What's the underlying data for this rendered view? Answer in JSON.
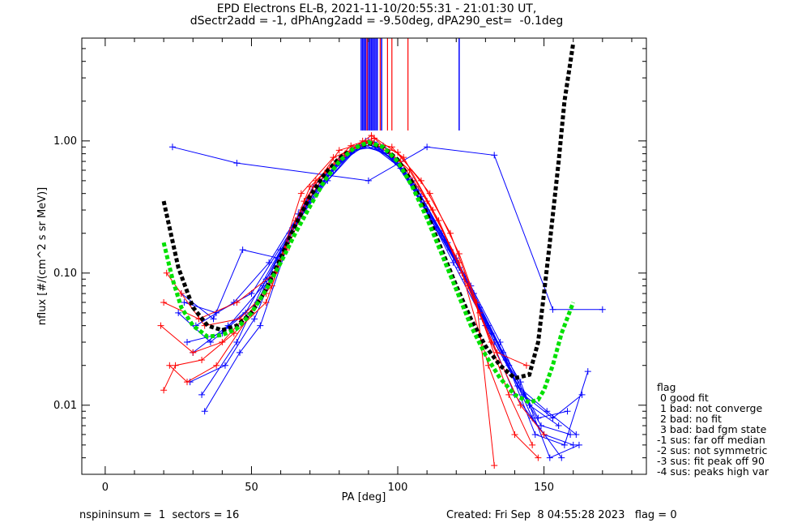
{
  "chart_data": {
    "type": "line",
    "title_line1": "EPD Electrons EL-B, 2021-11-10/20:55:31 - 21:01:30 UT,",
    "title_line2": "dSectr2add = -1, dPhAng2add = -9.50deg, dPA290_est=  -0.1deg",
    "xlabel": "PA [deg]",
    "ylabel": "nflux [#/(cm^2 s sr MeV)]",
    "xlim": [
      -8,
      185
    ],
    "ylim": [
      0.003,
      6.0
    ],
    "yscale": "log",
    "x_ticks": [
      "0",
      "50",
      "100",
      "150"
    ],
    "x_tick_values": [
      0,
      50,
      100,
      150
    ],
    "y_ticks": [
      "0.01",
      "0.10",
      "1.00"
    ],
    "y_tick_values": [
      0.01,
      0.1,
      1.0
    ],
    "fit_curves": [
      {
        "color": "#000000",
        "x": [
          20,
          25,
          30,
          35,
          40,
          45,
          50,
          55,
          60,
          65,
          70,
          75,
          80,
          85,
          90,
          95,
          100,
          105,
          110,
          115,
          120,
          125,
          130,
          135,
          140,
          145,
          148,
          150,
          152,
          155,
          157,
          160
        ],
        "y": [
          0.35,
          0.11,
          0.055,
          0.04,
          0.037,
          0.04,
          0.05,
          0.075,
          0.13,
          0.23,
          0.38,
          0.56,
          0.74,
          0.88,
          0.96,
          0.9,
          0.72,
          0.48,
          0.28,
          0.15,
          0.08,
          0.045,
          0.028,
          0.02,
          0.016,
          0.017,
          0.03,
          0.07,
          0.17,
          0.7,
          2.0,
          5.5
        ]
      },
      {
        "color": "#00e000",
        "x": [
          20,
          23,
          26,
          30,
          35,
          40,
          45,
          50,
          55,
          60,
          65,
          70,
          75,
          80,
          85,
          90,
          95,
          100,
          105,
          110,
          115,
          120,
          125,
          130,
          135,
          140,
          145,
          148,
          150,
          153,
          156,
          160
        ],
        "y": [
          0.17,
          0.09,
          0.055,
          0.04,
          0.033,
          0.034,
          0.038,
          0.05,
          0.075,
          0.12,
          0.2,
          0.32,
          0.5,
          0.7,
          0.88,
          0.98,
          0.9,
          0.7,
          0.45,
          0.26,
          0.14,
          0.075,
          0.04,
          0.024,
          0.016,
          0.012,
          0.0105,
          0.011,
          0.013,
          0.02,
          0.035,
          0.06
        ]
      }
    ],
    "sample_series": [
      {
        "color": "#0000ff",
        "points": [
          [
            23,
            0.9
          ],
          [
            45,
            0.68
          ],
          [
            90,
            0.5
          ],
          [
            110,
            0.9
          ],
          [
            133,
            0.78
          ],
          [
            153,
            0.053
          ],
          [
            170,
            0.053
          ]
        ]
      },
      {
        "color": "#0000ff",
        "points": [
          [
            33,
            0.012
          ],
          [
            45,
            0.03
          ],
          [
            55,
            0.09
          ],
          [
            68,
            0.3
          ],
          [
            80,
            0.7
          ],
          [
            90,
            1.0
          ],
          [
            100,
            0.68
          ],
          [
            110,
            0.3
          ],
          [
            120,
            0.13
          ],
          [
            130,
            0.04
          ],
          [
            140,
            0.012
          ],
          [
            150,
            0.006
          ],
          [
            160,
            0.005
          ]
        ]
      },
      {
        "color": "#0000ff",
        "points": [
          [
            27,
            0.06
          ],
          [
            38,
            0.05
          ],
          [
            50,
            0.07
          ],
          [
            63,
            0.2
          ],
          [
            75,
            0.55
          ],
          [
            88,
            0.95
          ],
          [
            98,
            0.75
          ],
          [
            108,
            0.38
          ],
          [
            118,
            0.15
          ],
          [
            128,
            0.055
          ],
          [
            138,
            0.02
          ],
          [
            148,
            0.008
          ],
          [
            158,
            0.009
          ]
        ]
      },
      {
        "color": "#0000ff",
        "points": [
          [
            30,
            0.025
          ],
          [
            42,
            0.04
          ],
          [
            52,
            0.06
          ],
          [
            65,
            0.25
          ],
          [
            78,
            0.6
          ],
          [
            89,
            1.0
          ],
          [
            102,
            0.6
          ],
          [
            112,
            0.25
          ],
          [
            122,
            0.1
          ],
          [
            132,
            0.035
          ],
          [
            142,
            0.015
          ],
          [
            152,
            0.004
          ],
          [
            162,
            0.005
          ]
        ]
      },
      {
        "color": "#0000ff",
        "points": [
          [
            25,
            0.05
          ],
          [
            36,
            0.03
          ],
          [
            48,
            0.05
          ],
          [
            60,
            0.15
          ],
          [
            72,
            0.4
          ],
          [
            85,
            0.85
          ],
          [
            95,
            0.92
          ],
          [
            105,
            0.5
          ],
          [
            115,
            0.2
          ],
          [
            125,
            0.08
          ],
          [
            135,
            0.03
          ],
          [
            145,
            0.01
          ],
          [
            155,
            0.007
          ]
        ]
      },
      {
        "color": "#0000ff",
        "points": [
          [
            28,
            0.03
          ],
          [
            40,
            0.035
          ],
          [
            54,
            0.08
          ],
          [
            67,
            0.3
          ],
          [
            80,
            0.72
          ],
          [
            92,
            0.98
          ],
          [
            103,
            0.55
          ],
          [
            113,
            0.22
          ],
          [
            123,
            0.09
          ],
          [
            133,
            0.03
          ],
          [
            143,
            0.012
          ],
          [
            153,
            0.008
          ],
          [
            163,
            0.012
          ]
        ]
      },
      {
        "color": "#0000ff",
        "points": [
          [
            31,
            0.04
          ],
          [
            44,
            0.06
          ],
          [
            56,
            0.12
          ],
          [
            69,
            0.35
          ],
          [
            82,
            0.78
          ],
          [
            91,
            1.0
          ],
          [
            101,
            0.62
          ],
          [
            111,
            0.26
          ],
          [
            121,
            0.11
          ],
          [
            131,
            0.04
          ],
          [
            141,
            0.014
          ],
          [
            151,
            0.009
          ],
          [
            161,
            0.006
          ]
        ]
      },
      {
        "color": "#0000ff",
        "points": [
          [
            26,
            0.07
          ],
          [
            37,
            0.045
          ],
          [
            47,
            0.15
          ],
          [
            59,
            0.13
          ],
          [
            71,
            0.45
          ],
          [
            86,
            0.9
          ],
          [
            96,
            0.85
          ],
          [
            106,
            0.45
          ],
          [
            116,
            0.18
          ],
          [
            126,
            0.07
          ],
          [
            136,
            0.025
          ],
          [
            146,
            0.008
          ],
          [
            156,
            0.004
          ]
        ]
      },
      {
        "color": "#0000ff",
        "points": [
          [
            29,
            0.015
          ],
          [
            41,
            0.02
          ],
          [
            51,
            0.045
          ],
          [
            64,
            0.22
          ],
          [
            76,
            0.5
          ],
          [
            87,
            0.92
          ],
          [
            97,
            0.8
          ],
          [
            107,
            0.42
          ],
          [
            117,
            0.17
          ],
          [
            127,
            0.06
          ],
          [
            137,
            0.022
          ],
          [
            147,
            0.006
          ],
          [
            157,
            0.005
          ],
          [
            165,
            0.018
          ]
        ]
      },
      {
        "color": "#0000ff",
        "points": [
          [
            34,
            0.009
          ],
          [
            46,
            0.025
          ],
          [
            53,
            0.04
          ],
          [
            66,
            0.28
          ],
          [
            79,
            0.65
          ],
          [
            90,
            0.97
          ],
          [
            99,
            0.7
          ],
          [
            109,
            0.32
          ],
          [
            119,
            0.12
          ],
          [
            129,
            0.045
          ],
          [
            139,
            0.017
          ],
          [
            149,
            0.007
          ],
          [
            159,
            0.006
          ]
        ]
      },
      {
        "color": "#ff0000",
        "points": [
          [
            20,
            0.06
          ],
          [
            32,
            0.045
          ],
          [
            45,
            0.06
          ],
          [
            58,
            0.1
          ],
          [
            70,
            0.45
          ],
          [
            82,
            0.8
          ],
          [
            91,
            1.1
          ],
          [
            102,
            0.75
          ],
          [
            112,
            0.3
          ],
          [
            122,
            0.1
          ],
          [
            132,
            0.03
          ],
          [
            142,
            0.01
          ],
          [
            150,
            0.006
          ]
        ]
      },
      {
        "color": "#ff0000",
        "points": [
          [
            19,
            0.04
          ],
          [
            30,
            0.025
          ],
          [
            40,
            0.03
          ],
          [
            55,
            0.07
          ],
          [
            68,
            0.35
          ],
          [
            80,
            0.85
          ],
          [
            91,
            1.0
          ],
          [
            101,
            0.7
          ],
          [
            110,
            0.35
          ],
          [
            121,
            0.12
          ],
          [
            131,
            0.02
          ],
          [
            140,
            0.006
          ],
          [
            148,
            0.004
          ]
        ]
      },
      {
        "color": "#ff0000",
        "points": [
          [
            22,
            0.02
          ],
          [
            28,
            0.015
          ],
          [
            38,
            0.02
          ],
          [
            50,
            0.05
          ],
          [
            62,
            0.15
          ],
          [
            72,
            0.5
          ],
          [
            84,
            0.92
          ],
          [
            92,
            1.05
          ],
          [
            104,
            0.6
          ],
          [
            114,
            0.25
          ],
          [
            124,
            0.08
          ],
          [
            134,
            0.025
          ],
          [
            144,
            0.02
          ]
        ]
      },
      {
        "color": "#ff0000",
        "points": [
          [
            21,
            0.1
          ],
          [
            26,
            0.07
          ],
          [
            34,
            0.04
          ],
          [
            46,
            0.045
          ],
          [
            57,
            0.08
          ],
          [
            67,
            0.4
          ],
          [
            78,
            0.75
          ],
          [
            90,
            0.97
          ],
          [
            100,
            0.82
          ],
          [
            111,
            0.4
          ],
          [
            121,
            0.14
          ],
          [
            127,
            0.06
          ],
          [
            133,
            0.0035
          ]
        ]
      },
      {
        "color": "#ff0000",
        "points": [
          [
            20,
            0.013
          ],
          [
            24,
            0.02
          ],
          [
            33,
            0.022
          ],
          [
            44,
            0.035
          ],
          [
            55,
            0.06
          ],
          [
            65,
            0.25
          ],
          [
            76,
            0.6
          ],
          [
            88,
            1.0
          ],
          [
            98,
            0.9
          ],
          [
            108,
            0.5
          ],
          [
            118,
            0.2
          ],
          [
            128,
            0.05
          ],
          [
            138,
            0.012
          ],
          [
            146,
            0.005
          ]
        ]
      }
    ],
    "vertical_lines_blue": [
      87.5,
      88,
      88.5,
      89,
      89.5,
      90,
      90.5,
      91,
      91.5,
      92,
      92.5,
      93,
      94.5,
      121
    ],
    "vertical_lines_red": [
      89.5,
      94,
      96.5,
      98,
      103.5
    ],
    "vertical_lines_y_range": [
      1.2,
      6.0
    ]
  },
  "legend": {
    "header": "flag",
    "items": [
      " 0 good fit",
      " 1 bad: not converge",
      " 2 bad: no fit",
      " 3 bad: bad fgm state",
      "-1 sus: far off median",
      "-2 sus: not symmetric",
      "-3 sus: fit peak off 90",
      "-4 sus: peaks high var"
    ]
  },
  "footer": {
    "left": "nspininsum =  1  sectors = 16",
    "right": "Created: Fri Sep  8 04:55:28 2023   flag = 0"
  }
}
